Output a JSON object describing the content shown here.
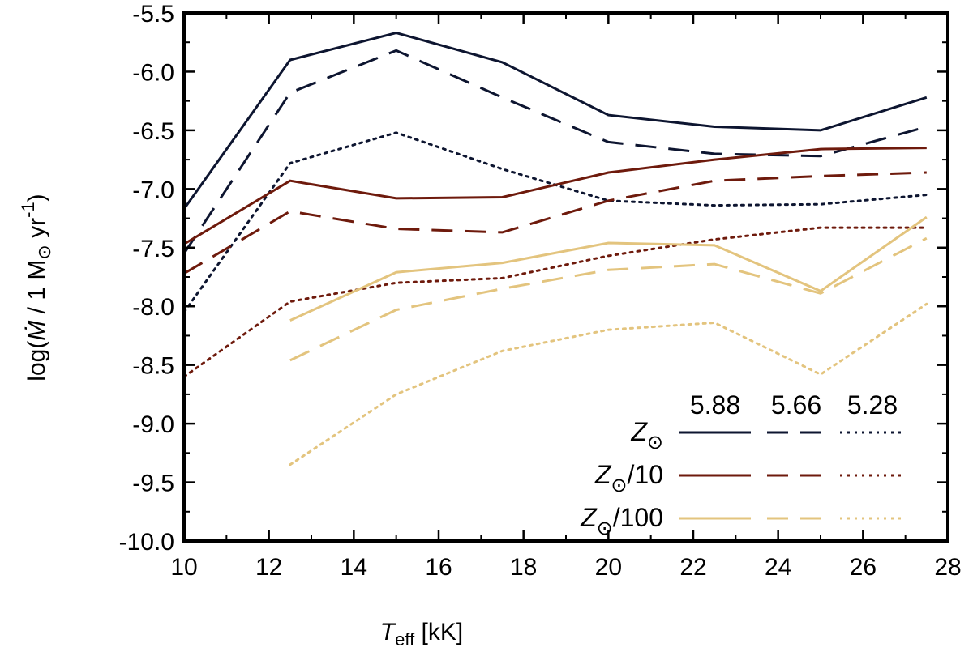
{
  "chart_data": {
    "type": "line",
    "title": "",
    "xlabel": {
      "main": "T",
      "sub": "eff",
      "unit": " [kK]"
    },
    "ylabel": {
      "prefix": "log(",
      "symbol": "Ṁ",
      "mid": " / 1 M",
      "sun": "⊙",
      "unit": " yr",
      "exp": "-1",
      "suffix": ")"
    },
    "xlim": [
      10,
      28
    ],
    "ylim": [
      -10.0,
      -5.5
    ],
    "xticks": [
      "10",
      "12",
      "14",
      "16",
      "18",
      "20",
      "22",
      "24",
      "26",
      "28"
    ],
    "yticks": [
      "-5.5",
      "-6.0",
      "-6.5",
      "-7.0",
      "-7.5",
      "-8.0",
      "-8.5",
      "-9.0",
      "-9.5",
      "-10.0"
    ],
    "grid": false,
    "legend_placement": "bottom-right",
    "legend_columns": [
      "5.88",
      "5.66",
      "5.28"
    ],
    "legend_rows": [
      {
        "symbol": "Z",
        "sun": "⊙",
        "suffix": "",
        "color": "#0d1530"
      },
      {
        "symbol": "Z",
        "sun": "⊙",
        "suffix": "/10",
        "color": "#6e1a0c"
      },
      {
        "symbol": "Z",
        "sun": "⊙",
        "suffix": "/100",
        "color": "#e3c47e"
      }
    ],
    "x": [
      10,
      12.5,
      15,
      17.5,
      20,
      22.5,
      25,
      27.5
    ],
    "series": [
      {
        "name": "Z_sun, log L = 5.88",
        "metallicity": "Z_sun",
        "luminosity": "5.88",
        "color": "#0d1530",
        "dash": "solid",
        "values": [
          -7.17,
          -5.9,
          -5.67,
          -5.92,
          -6.37,
          -6.47,
          -6.5,
          -6.22
        ]
      },
      {
        "name": "Z_sun, log L = 5.66",
        "metallicity": "Z_sun",
        "luminosity": "5.66",
        "color": "#0d1530",
        "dash": "dashed",
        "values": [
          -7.55,
          -6.18,
          -5.82,
          -6.22,
          -6.6,
          -6.7,
          -6.72,
          -6.47
        ]
      },
      {
        "name": "Z_sun, log L = 5.28",
        "metallicity": "Z_sun",
        "luminosity": "5.28",
        "color": "#0d1530",
        "dash": "dotted",
        "values": [
          -8.05,
          -6.78,
          -6.52,
          -6.83,
          -7.1,
          -7.14,
          -7.13,
          -7.05
        ]
      },
      {
        "name": "Z_sun/10, log L = 5.88",
        "metallicity": "Z_sun/10",
        "luminosity": "5.88",
        "color": "#6e1a0c",
        "dash": "solid",
        "values": [
          -7.47,
          -6.93,
          -7.08,
          -7.07,
          -6.86,
          -6.75,
          -6.66,
          -6.65
        ]
      },
      {
        "name": "Z_sun/10, log L = 5.66",
        "metallicity": "Z_sun/10",
        "luminosity": "5.66",
        "color": "#6e1a0c",
        "dash": "dashed",
        "values": [
          -7.72,
          -7.19,
          -7.34,
          -7.37,
          -7.1,
          -6.93,
          -6.89,
          -6.86
        ]
      },
      {
        "name": "Z_sun/10, log L = 5.28",
        "metallicity": "Z_sun/10",
        "luminosity": "5.28",
        "color": "#6e1a0c",
        "dash": "dotted",
        "values": [
          -8.6,
          -7.96,
          -7.8,
          -7.76,
          -7.57,
          -7.43,
          -7.33,
          -7.33
        ]
      },
      {
        "name": "Z_sun/100, log L = 5.88",
        "metallicity": "Z_sun/100",
        "luminosity": "5.88",
        "color": "#e3c47e",
        "dash": "solid",
        "values": [
          null,
          -8.12,
          -7.71,
          -7.63,
          -7.46,
          -7.48,
          -7.87,
          -7.24
        ]
      },
      {
        "name": "Z_sun/100, log L = 5.66",
        "metallicity": "Z_sun/100",
        "luminosity": "5.66",
        "color": "#e3c47e",
        "dash": "dashed",
        "values": [
          null,
          -8.46,
          -8.03,
          -7.85,
          -7.69,
          -7.64,
          -7.89,
          -7.42
        ]
      },
      {
        "name": "Z_sun/100, log L = 5.28",
        "metallicity": "Z_sun/100",
        "luminosity": "5.28",
        "color": "#e3c47e",
        "dash": "dotted",
        "values": [
          null,
          -9.35,
          -8.75,
          -8.38,
          -8.2,
          -8.14,
          -8.58,
          -7.98
        ]
      }
    ]
  }
}
